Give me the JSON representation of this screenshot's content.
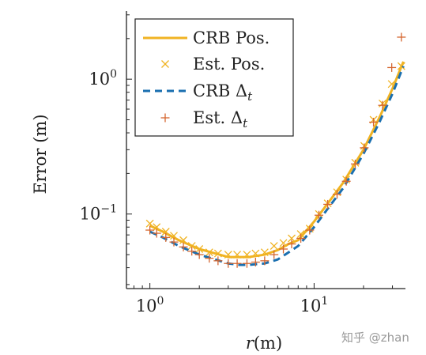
{
  "chart_data": {
    "type": "line",
    "x_scale": "log",
    "y_scale": "log",
    "xlabel_var": "r",
    "xlabel_unit": "(m)",
    "ylabel": "Error (m)",
    "xlim": [
      0.72,
      36
    ],
    "ylim": [
      0.028,
      3.2
    ],
    "x_ticks": [
      {
        "base": "10",
        "exp": "0",
        "value": 1
      },
      {
        "base": "10",
        "exp": "1",
        "value": 10
      }
    ],
    "y_ticks": [
      {
        "base": "10",
        "exp": "0",
        "value": 1
      },
      {
        "base": "10",
        "exp": "−1",
        "value": 0.1
      }
    ],
    "legend_position": "top-left",
    "series": [
      {
        "name": "CRB Pos.",
        "kind": "line",
        "style": "solid",
        "color": "#f0b323",
        "x": [
          1.0,
          1.2,
          1.5,
          2.0,
          2.5,
          3.0,
          3.5,
          4.0,
          5.0,
          6.0,
          7.0,
          8.0,
          10.0,
          12.0,
          15.0,
          20.0,
          25.0,
          30.0,
          35.0
        ],
        "y": [
          0.082,
          0.074,
          0.064,
          0.055,
          0.051,
          0.048,
          0.048,
          0.048,
          0.05,
          0.054,
          0.06,
          0.064,
          0.088,
          0.118,
          0.17,
          0.3,
          0.52,
          0.85,
          1.35
        ]
      },
      {
        "name": "Est. Pos.",
        "kind": "markers",
        "marker": "x",
        "color": "#f0b323",
        "x": [
          1.0,
          1.1,
          1.25,
          1.4,
          1.6,
          1.8,
          2.0,
          2.3,
          2.6,
          3.0,
          3.4,
          3.9,
          4.4,
          5.0,
          5.7,
          6.5,
          7.3,
          8.3,
          9.4,
          10.7,
          12.1,
          13.8,
          15.7,
          17.8,
          20.2,
          23.0,
          26.1,
          29.7,
          34.0
        ],
        "y": [
          0.085,
          0.08,
          0.074,
          0.069,
          0.064,
          0.058,
          0.055,
          0.052,
          0.051,
          0.05,
          0.05,
          0.05,
          0.051,
          0.052,
          0.058,
          0.061,
          0.066,
          0.071,
          0.078,
          0.1,
          0.12,
          0.145,
          0.18,
          0.24,
          0.32,
          0.5,
          0.66,
          0.92,
          1.25
        ]
      },
      {
        "name": "CRB Δt",
        "kind": "line",
        "style": "dashed",
        "color": "#1a6fb0",
        "x": [
          1.0,
          1.2,
          1.5,
          2.0,
          2.5,
          3.0,
          3.5,
          4.0,
          5.0,
          6.0,
          7.0,
          8.0,
          10.0,
          12.0,
          15.0,
          20.0,
          25.0,
          30.0,
          35.0
        ],
        "y": [
          0.074,
          0.067,
          0.058,
          0.05,
          0.046,
          0.043,
          0.042,
          0.042,
          0.043,
          0.046,
          0.052,
          0.058,
          0.08,
          0.108,
          0.155,
          0.28,
          0.48,
          0.78,
          1.25
        ]
      },
      {
        "name": "Est. Δt",
        "kind": "markers",
        "marker": "+",
        "color": "#d5662f",
        "x": [
          1.0,
          1.1,
          1.25,
          1.4,
          1.6,
          1.8,
          2.0,
          2.3,
          2.6,
          3.0,
          3.4,
          3.9,
          4.4,
          5.0,
          5.7,
          6.5,
          7.3,
          8.3,
          9.4,
          10.7,
          12.1,
          13.8,
          15.7,
          17.8,
          20.2,
          23.0,
          26.1,
          29.7,
          34.0
        ],
        "y": [
          0.076,
          0.072,
          0.067,
          0.062,
          0.057,
          0.053,
          0.05,
          0.047,
          0.045,
          0.043,
          0.043,
          0.043,
          0.044,
          0.045,
          0.05,
          0.055,
          0.06,
          0.066,
          0.076,
          0.098,
          0.118,
          0.14,
          0.175,
          0.235,
          0.31,
          0.48,
          0.64,
          1.22,
          2.05
        ]
      }
    ]
  },
  "watermark": "知乎 @zhan"
}
